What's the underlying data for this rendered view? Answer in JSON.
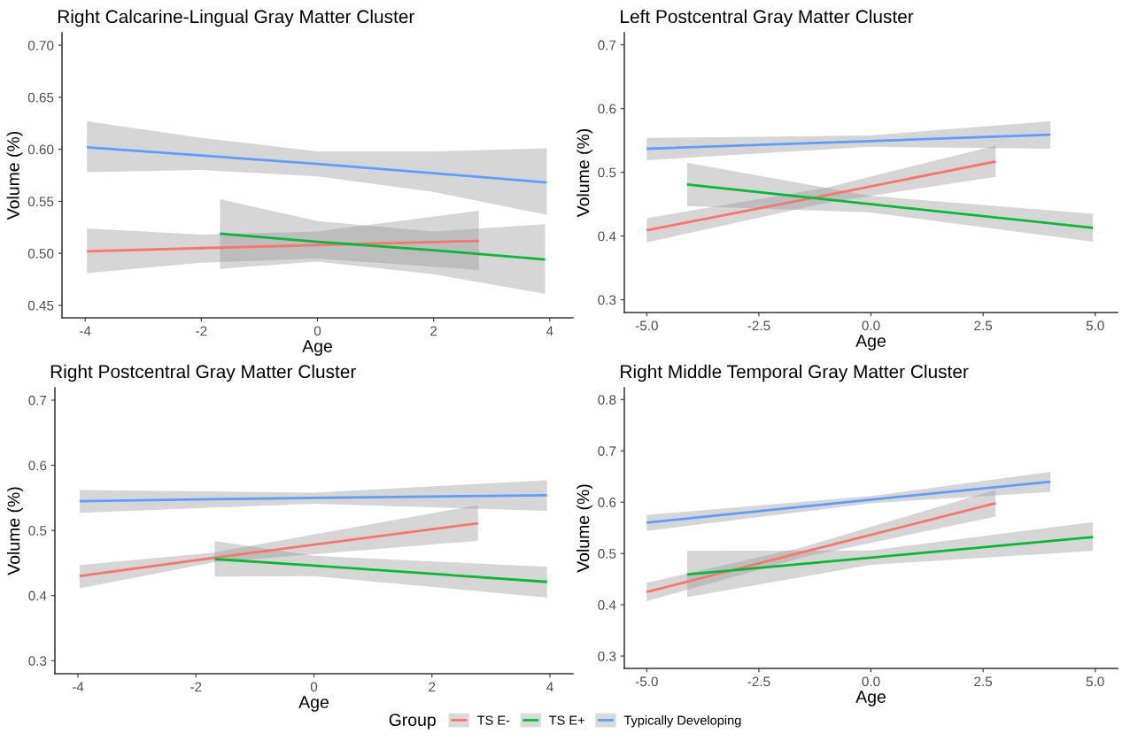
{
  "chart_data": [
    {
      "type": "line",
      "title": "Right Calcarine-Lingual Gray Matter Cluster",
      "xlabel": "Age",
      "ylabel": "Volume (%)",
      "legend": "bottom",
      "legend_title": "Group",
      "xlim": [
        -4.4,
        4.4
      ],
      "xticks": [
        -4,
        -2,
        0,
        2,
        4
      ],
      "ylim": [
        0.438,
        0.712
      ],
      "yticks": [
        {
          "value": 0.45,
          "label": "0.45"
        },
        {
          "value": 0.5,
          "label": "0.50"
        },
        {
          "value": 0.55,
          "label": "0.55"
        },
        {
          "value": 0.6,
          "label": "0.60"
        },
        {
          "value": 0.65,
          "label": "0.65"
        },
        {
          "value": 0.7,
          "label": "0.70"
        }
      ],
      "series": [
        {
          "name": "TS E-",
          "color": "#f8766d",
          "x": [
            -3.97,
            -2,
            0,
            2.78
          ],
          "values": [
            0.502,
            0.505,
            0.508,
            0.512
          ],
          "lower": [
            0.481,
            0.491,
            0.495,
            0.484
          ],
          "upper": [
            0.524,
            0.518,
            0.521,
            0.541
          ]
        },
        {
          "name": "TS E+",
          "color": "#00ba38",
          "x": [
            -1.68,
            0,
            2,
            3.92
          ],
          "values": [
            0.519,
            0.511,
            0.503,
            0.494
          ],
          "lower": [
            0.485,
            0.492,
            0.48,
            0.461
          ],
          "upper": [
            0.552,
            0.531,
            0.521,
            0.528
          ]
        },
        {
          "name": "Typically Developing",
          "color": "#619cff",
          "x": [
            -3.97,
            -2,
            0,
            2,
            3.95
          ],
          "values": [
            0.602,
            0.594,
            0.586,
            0.577,
            0.568
          ],
          "lower": [
            0.578,
            0.58,
            0.574,
            0.559,
            0.537
          ],
          "upper": [
            0.627,
            0.611,
            0.598,
            0.598,
            0.601
          ]
        }
      ]
    },
    {
      "type": "line",
      "title": "Left Postcentral Gray Matter Cluster",
      "xlabel": "Age",
      "ylabel": "Volume (%)",
      "xlim": [
        -5.5,
        5.5
      ],
      "xticks": [
        {
          "value": -5,
          "label": "-5.0"
        },
        -2.5,
        {
          "value": 0,
          "label": "0.0"
        },
        2.5,
        {
          "value": 5,
          "label": "5.0"
        }
      ],
      "ylim": [
        0.28,
        0.719
      ],
      "yticks": [
        0.3,
        0.4,
        0.5,
        0.6,
        0.7
      ],
      "series": [
        {
          "color": "#f8766d",
          "x": [
            -5,
            -1,
            2.78
          ],
          "values": [
            0.409,
            0.464,
            0.517
          ],
          "lower": [
            0.39,
            0.452,
            0.493
          ],
          "upper": [
            0.428,
            0.476,
            0.542
          ]
        },
        {
          "color": "#00ba38",
          "x": [
            -4.1,
            0,
            4.95
          ],
          "values": [
            0.481,
            0.45,
            0.413
          ],
          "lower": [
            0.447,
            0.437,
            0.391
          ],
          "upper": [
            0.515,
            0.463,
            0.435
          ]
        },
        {
          "color": "#619cff",
          "x": [
            -5,
            0,
            4
          ],
          "values": [
            0.537,
            0.549,
            0.559
          ],
          "lower": [
            0.519,
            0.54,
            0.537
          ],
          "upper": [
            0.554,
            0.558,
            0.58
          ]
        }
      ]
    },
    {
      "type": "line",
      "title": "Right Postcentral Gray Matter Cluster",
      "xlabel": "Age",
      "ylabel": "Volume (%)",
      "xlim": [
        -4.39,
        4.39
      ],
      "xticks": [
        -4,
        -2,
        0,
        2,
        4
      ],
      "ylim": [
        0.28,
        0.719
      ],
      "yticks": [
        0.3,
        0.4,
        0.5,
        0.6,
        0.7
      ],
      "series": [
        {
          "color": "#f8766d",
          "x": [
            -3.97,
            -1.7,
            2.78
          ],
          "values": [
            0.43,
            0.458,
            0.511
          ],
          "lower": [
            0.411,
            0.451,
            0.484
          ],
          "upper": [
            0.447,
            0.466,
            0.539
          ]
        },
        {
          "color": "#00ba38",
          "x": [
            -1.68,
            0,
            3.95
          ],
          "values": [
            0.456,
            0.446,
            0.421
          ],
          "lower": [
            0.429,
            0.43,
            0.397
          ],
          "upper": [
            0.484,
            0.461,
            0.444
          ]
        },
        {
          "color": "#619cff",
          "x": [
            -3.97,
            0,
            3.95
          ],
          "values": [
            0.545,
            0.55,
            0.554
          ],
          "lower": [
            0.527,
            0.541,
            0.53
          ],
          "upper": [
            0.562,
            0.558,
            0.577
          ]
        }
      ]
    },
    {
      "type": "line",
      "title": "Right Middle Temporal Gray Matter Cluster",
      "xlabel": "Age",
      "ylabel": "Volume (%)",
      "xlim": [
        -5.5,
        5.5
      ],
      "xticks": [
        {
          "value": -5,
          "label": "-5.0"
        },
        -2.5,
        {
          "value": 0,
          "label": "0.0"
        },
        2.5,
        {
          "value": 5,
          "label": "5.0"
        }
      ],
      "ylim": [
        0.276,
        0.823
      ],
      "yticks": [
        0.3,
        0.4,
        0.5,
        0.6,
        0.7,
        0.8
      ],
      "series": [
        {
          "color": "#f8766d",
          "x": [
            -5,
            -1.5,
            2.78
          ],
          "values": [
            0.425,
            0.503,
            0.598
          ],
          "lower": [
            0.407,
            0.493,
            0.572
          ],
          "upper": [
            0.443,
            0.513,
            0.624
          ]
        },
        {
          "color": "#00ba38",
          "x": [
            -4.1,
            0,
            4.95
          ],
          "values": [
            0.459,
            0.492,
            0.532
          ],
          "lower": [
            0.415,
            0.478,
            0.505
          ],
          "upper": [
            0.505,
            0.506,
            0.561
          ]
        },
        {
          "color": "#619cff",
          "x": [
            -5,
            0,
            4
          ],
          "values": [
            0.56,
            0.605,
            0.64
          ],
          "lower": [
            0.544,
            0.598,
            0.62
          ],
          "upper": [
            0.575,
            0.612,
            0.659
          ]
        }
      ]
    }
  ]
}
